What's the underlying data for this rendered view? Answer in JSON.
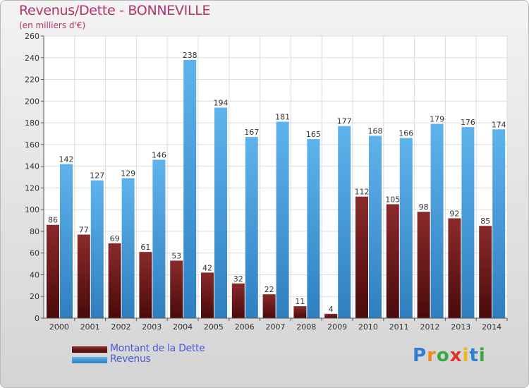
{
  "title": "Revenus/Dette - BONNEVILLE",
  "subtitle": "(en milliers d'€)",
  "logo_text": "Proxiti",
  "colors": {
    "dette": "#7a1e1e",
    "revenus": "#4aa3e4",
    "title": "#b0336e",
    "legend_text": "#4a5bd8"
  },
  "chart_data": {
    "type": "bar",
    "title": "Revenus/Dette - BONNEVILLE",
    "subtitle": "(en milliers d'€)",
    "categories": [
      "2000",
      "2001",
      "2002",
      "2003",
      "2004",
      "2005",
      "2006",
      "2007",
      "2008",
      "2009",
      "2010",
      "2011",
      "2012",
      "2013",
      "2014"
    ],
    "series": [
      {
        "name": "Montant de la Dette",
        "values": [
          86,
          77,
          69,
          61,
          53,
          42,
          32,
          22,
          11,
          4,
          112,
          105,
          98,
          92,
          85
        ]
      },
      {
        "name": "Revenus",
        "values": [
          142,
          127,
          129,
          146,
          238,
          194,
          167,
          181,
          165,
          177,
          168,
          166,
          179,
          176,
          174
        ]
      }
    ],
    "ylim": [
      0,
      260
    ],
    "yticks": [
      0,
      20,
      40,
      60,
      80,
      100,
      120,
      140,
      160,
      180,
      200,
      220,
      240,
      260
    ],
    "grid": true,
    "legend_position": "bottom-left"
  }
}
